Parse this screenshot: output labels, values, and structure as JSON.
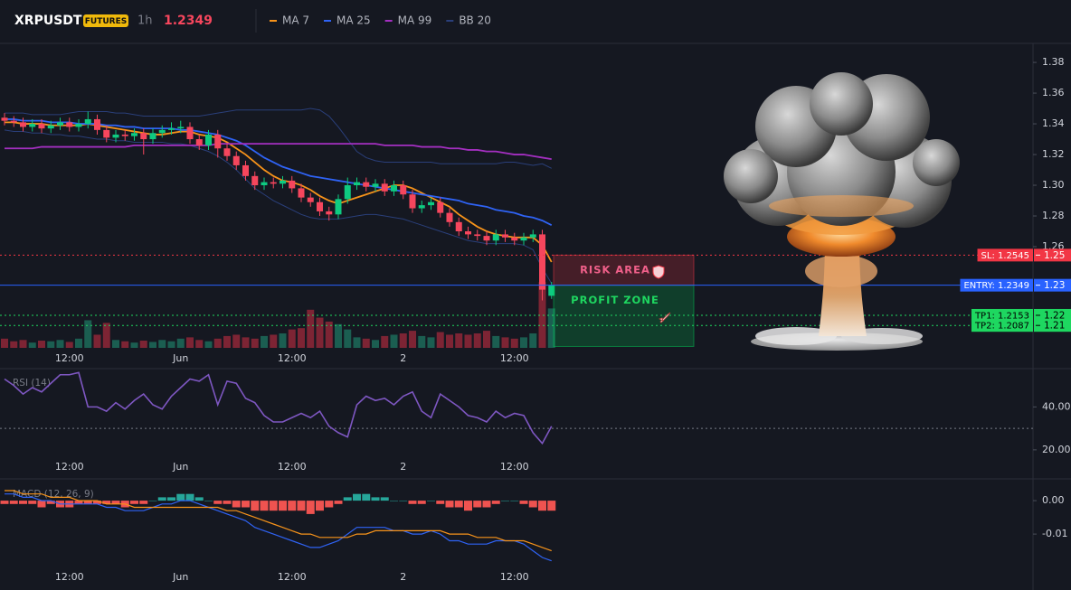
{
  "chart_data": [
    {
      "type": "candlestick",
      "title": "XRPUSDT",
      "badge": "FUTURES",
      "interval": "1h",
      "last_price": 1.2349,
      "price_color": "#f6465d",
      "categories": [
        null,
        null,
        null,
        null,
        null,
        null,
        null,
        "12:00",
        null,
        null,
        null,
        null,
        null,
        null,
        null,
        null,
        null,
        null,
        null,
        "Jun",
        null,
        null,
        null,
        null,
        null,
        null,
        null,
        null,
        null,
        null,
        null,
        "12:00",
        null,
        null,
        null,
        null,
        null,
        null,
        null,
        null,
        null,
        null,
        null,
        "2",
        null,
        null,
        null,
        null,
        null,
        null,
        null,
        null,
        null,
        null,
        null,
        "12:00",
        null,
        null,
        null,
        null
      ],
      "open": [
        1.344,
        1.342,
        1.341,
        1.338,
        1.34,
        1.337,
        1.339,
        1.341,
        1.338,
        1.34,
        1.343,
        1.336,
        1.331,
        1.333,
        1.332,
        1.334,
        1.33,
        1.334,
        1.336,
        1.337,
        1.338,
        1.33,
        1.326,
        1.333,
        1.324,
        1.319,
        1.313,
        1.306,
        1.3,
        1.302,
        1.301,
        1.303,
        1.298,
        1.292,
        1.289,
        1.283,
        1.281,
        1.291,
        1.3,
        1.302,
        1.299,
        1.301,
        1.296,
        1.3,
        1.294,
        1.285,
        1.287,
        1.289,
        1.282,
        1.276,
        1.27,
        1.268,
        1.267,
        1.264,
        1.268,
        1.266,
        1.264,
        1.266,
        1.268,
        1.228
      ],
      "high": [
        1.347,
        1.345,
        1.344,
        1.343,
        1.343,
        1.342,
        1.344,
        1.344,
        1.343,
        1.348,
        1.346,
        1.339,
        1.336,
        1.336,
        1.337,
        1.337,
        1.337,
        1.339,
        1.341,
        1.342,
        1.341,
        1.333,
        1.336,
        1.336,
        1.327,
        1.322,
        1.316,
        1.309,
        1.305,
        1.305,
        1.306,
        1.306,
        1.301,
        1.295,
        1.292,
        1.286,
        1.294,
        1.305,
        1.305,
        1.305,
        1.304,
        1.304,
        1.303,
        1.303,
        1.297,
        1.29,
        1.292,
        1.292,
        1.285,
        1.279,
        1.273,
        1.271,
        1.27,
        1.271,
        1.271,
        1.269,
        1.269,
        1.271,
        1.271,
        1.237
      ],
      "low": [
        1.339,
        1.338,
        1.335,
        1.335,
        1.334,
        1.334,
        1.336,
        1.335,
        1.335,
        1.337,
        1.333,
        1.328,
        1.328,
        1.329,
        1.329,
        1.32,
        1.327,
        1.331,
        1.333,
        1.334,
        1.327,
        1.323,
        1.323,
        1.318,
        1.316,
        1.31,
        1.303,
        1.297,
        1.297,
        1.298,
        1.298,
        1.295,
        1.289,
        1.286,
        1.28,
        1.277,
        1.278,
        1.288,
        1.297,
        1.296,
        1.296,
        1.293,
        1.293,
        1.291,
        1.282,
        1.282,
        1.284,
        1.279,
        1.273,
        1.267,
        1.265,
        1.264,
        1.261,
        1.261,
        1.263,
        1.261,
        1.261,
        1.263,
        1.225,
        1.226
      ],
      "close": [
        1.342,
        1.341,
        1.338,
        1.34,
        1.337,
        1.339,
        1.341,
        1.338,
        1.34,
        1.343,
        1.336,
        1.331,
        1.333,
        1.332,
        1.334,
        1.33,
        1.334,
        1.336,
        1.337,
        1.338,
        1.33,
        1.326,
        1.333,
        1.324,
        1.319,
        1.313,
        1.306,
        1.3,
        1.302,
        1.301,
        1.303,
        1.298,
        1.292,
        1.289,
        1.283,
        1.281,
        1.291,
        1.3,
        1.302,
        1.299,
        1.301,
        1.296,
        1.3,
        1.294,
        1.285,
        1.287,
        1.289,
        1.282,
        1.276,
        1.27,
        1.268,
        1.267,
        1.264,
        1.268,
        1.266,
        1.264,
        1.266,
        1.268,
        1.232,
        1.2349
      ],
      "up_color": "#0ecb81",
      "down_color": "#f6465d",
      "volume": [
        14,
        10,
        12,
        8,
        11,
        10,
        12,
        9,
        14,
        42,
        20,
        38,
        12,
        10,
        8,
        11,
        9,
        12,
        10,
        14,
        16,
        12,
        10,
        14,
        18,
        20,
        16,
        14,
        18,
        20,
        22,
        28,
        30,
        58,
        46,
        40,
        36,
        28,
        16,
        14,
        12,
        18,
        20,
        22,
        26,
        18,
        16,
        24,
        20,
        22,
        20,
        22,
        26,
        18,
        16,
        14,
        16,
        22,
        100,
        60
      ],
      "volume_ylim": [
        0,
        110
      ],
      "volume_up_color": "#1b5e51",
      "volume_down_color": "#7d2434",
      "series": [
        {
          "name": "MA 7",
          "color": "#f7931a",
          "values": [
            1.341,
            1.341,
            1.34,
            1.34,
            1.34,
            1.339,
            1.339,
            1.339,
            1.339,
            1.34,
            1.339,
            1.338,
            1.337,
            1.336,
            1.335,
            1.334,
            1.333,
            1.333,
            1.334,
            1.335,
            1.335,
            1.333,
            1.332,
            1.331,
            1.328,
            1.324,
            1.32,
            1.315,
            1.31,
            1.306,
            1.303,
            1.302,
            1.3,
            1.297,
            1.293,
            1.29,
            1.288,
            1.29,
            1.292,
            1.294,
            1.296,
            1.298,
            1.3,
            1.3,
            1.298,
            1.295,
            1.292,
            1.289,
            1.286,
            1.281,
            1.277,
            1.273,
            1.27,
            1.268,
            1.267,
            1.266,
            1.266,
            1.266,
            1.261,
            1.25
          ]
        },
        {
          "name": "MA 25",
          "color": "#2f63f5",
          "values": [
            1.343,
            1.343,
            1.342,
            1.342,
            1.342,
            1.341,
            1.341,
            1.341,
            1.34,
            1.34,
            1.34,
            1.339,
            1.339,
            1.338,
            1.338,
            1.337,
            1.337,
            1.337,
            1.337,
            1.336,
            1.336,
            1.335,
            1.334,
            1.333,
            1.331,
            1.329,
            1.326,
            1.322,
            1.318,
            1.315,
            1.312,
            1.31,
            1.308,
            1.306,
            1.305,
            1.304,
            1.303,
            1.302,
            1.301,
            1.3,
            1.299,
            1.298,
            1.297,
            1.296,
            1.295,
            1.294,
            1.293,
            1.292,
            1.291,
            1.29,
            1.288,
            1.287,
            1.286,
            1.284,
            1.283,
            1.282,
            1.28,
            1.279,
            1.277,
            1.274
          ]
        },
        {
          "name": "MA 99",
          "color": "#a42fc1",
          "values": [
            1.324,
            1.324,
            1.324,
            1.324,
            1.325,
            1.325,
            1.325,
            1.325,
            1.325,
            1.325,
            1.325,
            1.325,
            1.325,
            1.325,
            1.326,
            1.326,
            1.326,
            1.326,
            1.326,
            1.326,
            1.326,
            1.326,
            1.326,
            1.327,
            1.327,
            1.327,
            1.327,
            1.327,
            1.327,
            1.327,
            1.327,
            1.327,
            1.327,
            1.327,
            1.327,
            1.327,
            1.327,
            1.327,
            1.327,
            1.327,
            1.327,
            1.326,
            1.326,
            1.326,
            1.326,
            1.325,
            1.325,
            1.325,
            1.324,
            1.324,
            1.323,
            1.323,
            1.322,
            1.322,
            1.321,
            1.32,
            1.32,
            1.319,
            1.318,
            1.317
          ]
        }
      ],
      "bands": {
        "name": "BB 20",
        "color": "#2a3f7a",
        "upper": [
          1.347,
          1.347,
          1.347,
          1.346,
          1.346,
          1.346,
          1.346,
          1.347,
          1.348,
          1.348,
          1.348,
          1.348,
          1.347,
          1.347,
          1.346,
          1.345,
          1.345,
          1.345,
          1.345,
          1.345,
          1.345,
          1.345,
          1.346,
          1.347,
          1.348,
          1.349,
          1.349,
          1.349,
          1.349,
          1.349,
          1.349,
          1.349,
          1.349,
          1.35,
          1.349,
          1.345,
          1.338,
          1.33,
          1.322,
          1.318,
          1.316,
          1.315,
          1.315,
          1.315,
          1.315,
          1.315,
          1.315,
          1.314,
          1.314,
          1.314,
          1.314,
          1.314,
          1.314,
          1.314,
          1.315,
          1.315,
          1.314,
          1.313,
          1.314,
          1.311
        ],
        "lower": [
          1.336,
          1.335,
          1.335,
          1.334,
          1.334,
          1.333,
          1.333,
          1.332,
          1.332,
          1.331,
          1.33,
          1.33,
          1.329,
          1.329,
          1.328,
          1.328,
          1.328,
          1.328,
          1.327,
          1.327,
          1.326,
          1.324,
          1.322,
          1.319,
          1.315,
          1.31,
          1.304,
          1.298,
          1.294,
          1.29,
          1.287,
          1.284,
          1.281,
          1.279,
          1.278,
          1.278,
          1.278,
          1.279,
          1.28,
          1.281,
          1.281,
          1.28,
          1.279,
          1.278,
          1.276,
          1.274,
          1.272,
          1.27,
          1.268,
          1.266,
          1.264,
          1.263,
          1.262,
          1.262,
          1.262,
          1.262,
          1.261,
          1.258,
          1.246,
          1.236
        ]
      },
      "levels": [
        {
          "value": 1.2545,
          "label": "SL: 1.2545",
          "axis_label": "1.25",
          "color": "#f23645",
          "text_color": "#ffffff",
          "style": "dotted"
        },
        {
          "value": 1.2349,
          "label": "ENTRY: 1.2349",
          "axis_label": "1.23",
          "color": "#2962ff",
          "text_color": "#ffffff",
          "style": "solid"
        },
        {
          "value": 1.2153,
          "label": "TP1: 1.2153",
          "axis_label": "1.22",
          "color": "#1ed760",
          "text_color": "#000000",
          "style": "dotted"
        },
        {
          "value": 1.2087,
          "label": "TP2: 1.2087",
          "axis_label": "1.21",
          "color": "#1ed760",
          "text_color": "#000000",
          "style": "dotted"
        }
      ],
      "zones": [
        {
          "label": "RISK AREA",
          "from": 1.2545,
          "to": 1.2349,
          "color": "#f23645",
          "text_color": "#f0608a"
        },
        {
          "label": "PROFIT ZONE",
          "from": 1.2349,
          "to": 1.195,
          "color": "#00c853",
          "text_color": "#1ed760"
        }
      ],
      "ylim": [
        1.1941,
        1.3924
      ],
      "yticks": [
        1.38,
        1.36,
        1.34,
        1.32,
        {
          "value": 1.3,
          "label": "1.30"
        },
        1.28,
        1.26
      ]
    },
    {
      "type": "line",
      "title": "RSI (14)",
      "color": "#7e57c2",
      "categories": [
        null,
        null,
        null,
        null,
        null,
        null,
        null,
        "12:00",
        null,
        null,
        null,
        null,
        null,
        null,
        null,
        null,
        null,
        null,
        null,
        "Jun",
        null,
        null,
        null,
        null,
        null,
        null,
        null,
        null,
        null,
        null,
        null,
        "12:00",
        null,
        null,
        null,
        null,
        null,
        null,
        null,
        null,
        null,
        null,
        null,
        "2",
        null,
        null,
        null,
        null,
        null,
        null,
        null,
        null,
        null,
        null,
        null,
        "12:00",
        null,
        null,
        null,
        null
      ],
      "values": [
        53,
        50,
        46,
        49,
        47,
        51,
        55,
        55,
        56,
        40,
        40,
        38,
        42,
        39,
        43,
        46,
        41,
        39,
        45,
        49,
        53,
        52,
        55,
        41,
        52,
        51,
        44,
        42,
        36,
        33,
        33,
        35,
        37,
        35,
        38,
        31,
        28,
        26,
        41,
        45,
        43,
        44,
        41,
        45,
        47,
        38,
        35,
        46,
        43,
        40,
        36,
        35,
        33,
        38,
        35,
        37,
        36,
        28,
        23,
        31
      ],
      "hline": 30,
      "ylim": [
        17,
        57
      ],
      "yticks": [
        {
          "value": 40,
          "label": "40.00"
        },
        {
          "value": 20,
          "label": "20.00"
        }
      ]
    },
    {
      "type": "macd",
      "title": "MACD (12, 26, 9)",
      "macd_color": "#2f63f5",
      "signal_color": "#f7931a",
      "up_color": "#26a69a",
      "down_color": "#ef5350",
      "categories": [
        null,
        null,
        null,
        null,
        null,
        null,
        null,
        "12:00",
        null,
        null,
        null,
        null,
        null,
        null,
        null,
        null,
        null,
        null,
        null,
        "Jun",
        null,
        null,
        null,
        null,
        null,
        null,
        null,
        null,
        null,
        null,
        null,
        "12:00",
        null,
        null,
        null,
        null,
        null,
        null,
        null,
        null,
        null,
        null,
        null,
        "2",
        null,
        null,
        null,
        null,
        null,
        null,
        null,
        null,
        null,
        null,
        null,
        "12:00",
        null,
        null,
        null,
        null
      ],
      "macd": [
        0.002,
        0.002,
        0.001,
        0.001,
        0.0,
        0.0,
        -0.001,
        -0.001,
        -0.001,
        -0.001,
        -0.001,
        -0.002,
        -0.002,
        -0.003,
        -0.003,
        -0.003,
        -0.002,
        -0.001,
        -0.001,
        0.0,
        0.0,
        -0.001,
        -0.002,
        -0.003,
        -0.004,
        -0.005,
        -0.006,
        -0.008,
        -0.009,
        -0.01,
        -0.011,
        -0.012,
        -0.013,
        -0.014,
        -0.014,
        -0.013,
        -0.012,
        -0.01,
        -0.008,
        -0.008,
        -0.008,
        -0.008,
        -0.009,
        -0.009,
        -0.01,
        -0.01,
        -0.009,
        -0.01,
        -0.012,
        -0.012,
        -0.013,
        -0.013,
        -0.013,
        -0.012,
        -0.012,
        -0.012,
        -0.013,
        -0.015,
        -0.017,
        -0.018
      ],
      "signal": [
        0.003,
        0.003,
        0.002,
        0.002,
        0.002,
        0.001,
        0.001,
        0.001,
        0.0,
        0.0,
        0.0,
        -0.001,
        -0.001,
        -0.001,
        -0.002,
        -0.002,
        -0.002,
        -0.002,
        -0.002,
        -0.002,
        -0.002,
        -0.002,
        -0.002,
        -0.002,
        -0.003,
        -0.003,
        -0.004,
        -0.005,
        -0.006,
        -0.007,
        -0.008,
        -0.009,
        -0.01,
        -0.01,
        -0.011,
        -0.011,
        -0.011,
        -0.011,
        -0.01,
        -0.01,
        -0.009,
        -0.009,
        -0.009,
        -0.009,
        -0.009,
        -0.009,
        -0.009,
        -0.009,
        -0.01,
        -0.01,
        -0.01,
        -0.011,
        -0.011,
        -0.011,
        -0.012,
        -0.012,
        -0.012,
        -0.013,
        -0.014,
        -0.015
      ],
      "histogram": [
        -0.001,
        -0.001,
        -0.001,
        -0.001,
        -0.002,
        -0.001,
        -0.002,
        -0.002,
        -0.001,
        -0.001,
        -0.001,
        -0.001,
        -0.001,
        -0.002,
        -0.001,
        -0.001,
        0.0,
        0.001,
        0.001,
        0.002,
        0.002,
        0.001,
        0.0,
        -0.001,
        -0.001,
        -0.002,
        -0.002,
        -0.003,
        -0.003,
        -0.003,
        -0.003,
        -0.003,
        -0.003,
        -0.004,
        -0.003,
        -0.002,
        -0.001,
        0.001,
        0.002,
        0.002,
        0.001,
        0.001,
        0.0,
        0.0,
        -0.001,
        -0.001,
        0.0,
        -0.001,
        -0.002,
        -0.002,
        -0.003,
        -0.002,
        -0.002,
        -0.001,
        0.0,
        0.0,
        -0.001,
        -0.002,
        -0.003,
        -0.003
      ],
      "ylim": [
        -0.0197,
        0.0057
      ],
      "yticks": [
        {
          "value": 0,
          "label": "0.00"
        },
        {
          "value": -0.01,
          "label": "-0.01"
        }
      ]
    }
  ]
}
